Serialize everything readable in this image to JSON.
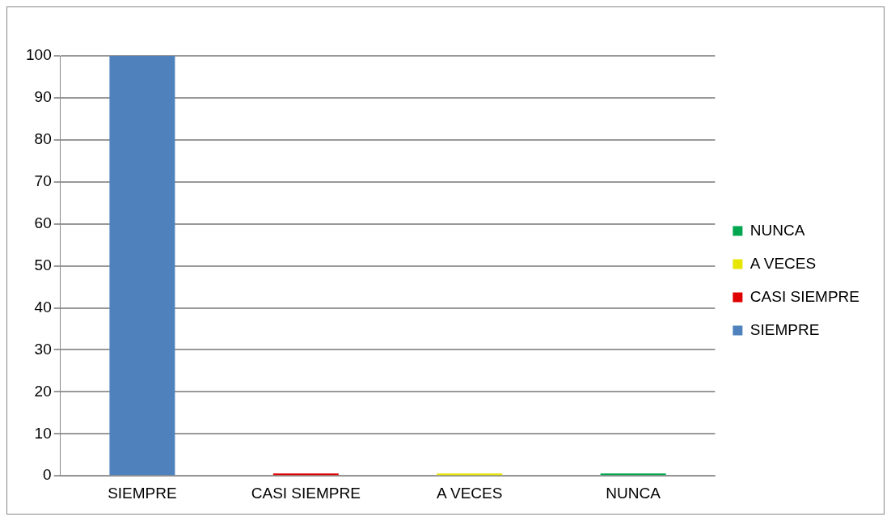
{
  "chart_data": {
    "type": "bar",
    "categories": [
      "SIEMPRE",
      "CASI SIEMPRE",
      "A VECES",
      "NUNCA"
    ],
    "series": [
      {
        "name": "SIEMPRE",
        "color": "#4f81bd",
        "values": [
          100,
          null,
          null,
          null
        ]
      },
      {
        "name": "CASI SIEMPRE",
        "color": "#e00000",
        "values": [
          null,
          0,
          null,
          null
        ]
      },
      {
        "name": "A VECES",
        "color": "#e6e600",
        "values": [
          null,
          null,
          0,
          null
        ]
      },
      {
        "name": "NUNCA",
        "color": "#00a650",
        "values": [
          null,
          null,
          null,
          0
        ]
      }
    ],
    "ylim": [
      0,
      100
    ],
    "yticks": [
      0,
      10,
      20,
      30,
      40,
      50,
      60,
      70,
      80,
      90,
      100
    ],
    "grid": "y",
    "legend": "right"
  }
}
